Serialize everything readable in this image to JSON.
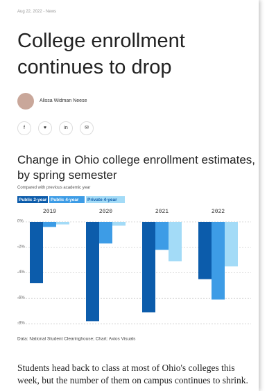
{
  "meta": "Aug 22, 2022 - News",
  "headline": "College enrollment continues to drop",
  "author": "Alissa Widman Neese",
  "chart_data": {
    "type": "bar",
    "title": "Change in Ohio college enrollment estimates, by spring semester",
    "subtitle": "Compared with previous academic year",
    "categories": [
      "2019",
      "2020",
      "2021",
      "2022"
    ],
    "series": [
      {
        "name": "Public 2-year",
        "color": "#0c5cab",
        "values": [
          -4.8,
          -7.8,
          -7.1,
          -4.5
        ]
      },
      {
        "name": "Public 4-year",
        "color": "#3d9ce6",
        "values": [
          -0.4,
          -1.7,
          -2.2,
          -6.1
        ]
      },
      {
        "name": "Private 4-year",
        "color": "#a3dbf7",
        "values": [
          -0.2,
          -0.3,
          -3.1,
          -3.5
        ]
      }
    ],
    "ylim": [
      -8,
      0
    ],
    "yticks": [
      {
        "value": 0,
        "label": "0%"
      },
      {
        "value": -2,
        "label": "-2%"
      },
      {
        "value": -4,
        "label": "-4%"
      },
      {
        "value": -6,
        "label": "-6%"
      },
      {
        "value": -8,
        "label": "-8%"
      }
    ],
    "grid": true,
    "source": "Data: National Student Clearinghouse; Chart: Axios Visuals"
  },
  "body": "Students head back to class at most of Ohio's colleges this week, but the number of them on campus continues to shrink."
}
